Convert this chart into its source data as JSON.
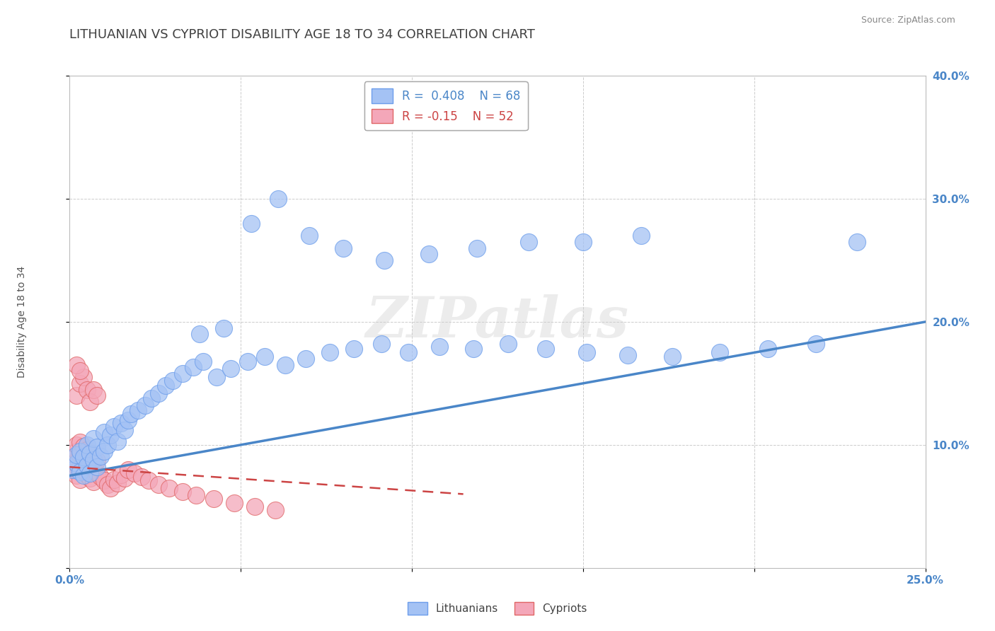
{
  "title": "LITHUANIAN VS CYPRIOT DISABILITY AGE 18 TO 34 CORRELATION CHART",
  "source_text": "Source: ZipAtlas.com",
  "ylabel": "Disability Age 18 to 34",
  "xlim": [
    0.0,
    0.25
  ],
  "ylim": [
    0.0,
    0.4
  ],
  "xticks": [
    0.0,
    0.05,
    0.1,
    0.15,
    0.2,
    0.25
  ],
  "yticks": [
    0.0,
    0.1,
    0.2,
    0.3,
    0.4
  ],
  "r_blue": 0.408,
  "n_blue": 68,
  "r_pink": -0.15,
  "n_pink": 52,
  "blue_color": "#a4c2f4",
  "pink_color": "#f4a7b9",
  "blue_edge_color": "#6d9eeb",
  "pink_edge_color": "#e06666",
  "blue_line_color": "#4a86c8",
  "pink_line_color": "#cc4444",
  "legend_label_blue": "Lithuanians",
  "legend_label_pink": "Cypriots",
  "watermark": "ZIPatlas",
  "background_color": "#ffffff",
  "grid_color": "#cccccc",
  "title_color": "#404040",
  "blue_line_x0": 0.0,
  "blue_line_y0": 0.075,
  "blue_line_x1": 0.25,
  "blue_line_y1": 0.2,
  "pink_line_x0": 0.0,
  "pink_line_y0": 0.082,
  "pink_line_x1": 0.115,
  "pink_line_y1": 0.06,
  "blue_scatter_x": [
    0.001,
    0.002,
    0.002,
    0.003,
    0.003,
    0.004,
    0.004,
    0.005,
    0.005,
    0.006,
    0.006,
    0.007,
    0.007,
    0.008,
    0.008,
    0.009,
    0.01,
    0.01,
    0.011,
    0.012,
    0.013,
    0.014,
    0.015,
    0.016,
    0.017,
    0.018,
    0.02,
    0.022,
    0.024,
    0.026,
    0.028,
    0.03,
    0.033,
    0.036,
    0.039,
    0.043,
    0.047,
    0.052,
    0.057,
    0.063,
    0.069,
    0.076,
    0.083,
    0.091,
    0.099,
    0.108,
    0.118,
    0.128,
    0.139,
    0.151,
    0.163,
    0.176,
    0.19,
    0.204,
    0.218,
    0.23,
    0.038,
    0.045,
    0.053,
    0.061,
    0.07,
    0.08,
    0.092,
    0.105,
    0.119,
    0.134,
    0.15,
    0.167
  ],
  "blue_scatter_y": [
    0.08,
    0.085,
    0.092,
    0.078,
    0.095,
    0.075,
    0.09,
    0.083,
    0.1,
    0.077,
    0.093,
    0.088,
    0.105,
    0.082,
    0.098,
    0.091,
    0.095,
    0.11,
    0.1,
    0.108,
    0.115,
    0.103,
    0.118,
    0.112,
    0.12,
    0.125,
    0.128,
    0.132,
    0.138,
    0.142,
    0.148,
    0.152,
    0.158,
    0.163,
    0.168,
    0.155,
    0.162,
    0.168,
    0.172,
    0.165,
    0.17,
    0.175,
    0.178,
    0.182,
    0.175,
    0.18,
    0.178,
    0.182,
    0.178,
    0.175,
    0.173,
    0.172,
    0.175,
    0.178,
    0.182,
    0.265,
    0.19,
    0.195,
    0.28,
    0.3,
    0.27,
    0.26,
    0.25,
    0.255,
    0.26,
    0.265,
    0.265,
    0.27
  ],
  "pink_scatter_x": [
    0.001,
    0.001,
    0.002,
    0.002,
    0.002,
    0.002,
    0.003,
    0.003,
    0.003,
    0.003,
    0.004,
    0.004,
    0.004,
    0.005,
    0.005,
    0.005,
    0.006,
    0.006,
    0.006,
    0.007,
    0.007,
    0.008,
    0.008,
    0.009,
    0.01,
    0.011,
    0.012,
    0.013,
    0.014,
    0.015,
    0.016,
    0.017,
    0.019,
    0.021,
    0.023,
    0.026,
    0.029,
    0.033,
    0.037,
    0.042,
    0.048,
    0.054,
    0.06,
    0.002,
    0.003,
    0.004,
    0.005,
    0.006,
    0.007,
    0.008,
    0.002,
    0.003
  ],
  "pink_scatter_y": [
    0.08,
    0.09,
    0.085,
    0.095,
    0.075,
    0.1,
    0.082,
    0.092,
    0.072,
    0.102,
    0.079,
    0.089,
    0.099,
    0.076,
    0.086,
    0.096,
    0.083,
    0.073,
    0.093,
    0.08,
    0.07,
    0.077,
    0.087,
    0.074,
    0.071,
    0.068,
    0.065,
    0.072,
    0.069,
    0.076,
    0.073,
    0.08,
    0.077,
    0.074,
    0.071,
    0.068,
    0.065,
    0.062,
    0.059,
    0.056,
    0.053,
    0.05,
    0.047,
    0.14,
    0.15,
    0.155,
    0.145,
    0.135,
    0.145,
    0.14,
    0.165,
    0.16
  ],
  "title_fontsize": 13,
  "axis_label_fontsize": 10,
  "tick_fontsize": 11,
  "source_fontsize": 9
}
